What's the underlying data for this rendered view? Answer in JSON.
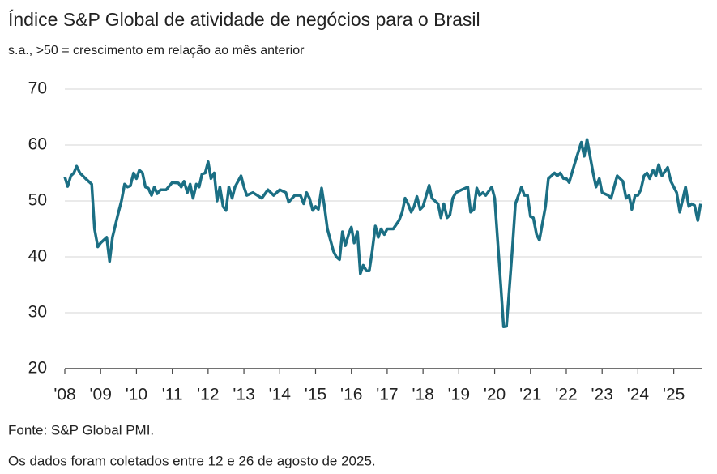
{
  "chart_data": {
    "type": "line",
    "title": "Índice S&P Global de atividade de negócios para o Brasil",
    "subtitle": "s.a., >50 = crescimento em relação ao mês anterior",
    "source": "Fonte: S&P Global PMI.",
    "note": "Os dados foram coletados entre 12 e 26 de agosto de 2025.",
    "xlim": [
      2008,
      2025.8
    ],
    "xticks": [
      {
        "value": 2008,
        "label": "'08"
      },
      {
        "value": 2009,
        "label": "'09"
      },
      {
        "value": 2010,
        "label": "'10"
      },
      {
        "value": 2011,
        "label": "'11"
      },
      {
        "value": 2012,
        "label": "'12"
      },
      {
        "value": 2013,
        "label": "'13"
      },
      {
        "value": 2014,
        "label": "'14"
      },
      {
        "value": 2015,
        "label": "'15"
      },
      {
        "value": 2016,
        "label": "'16"
      },
      {
        "value": 2017,
        "label": "'17"
      },
      {
        "value": 2018,
        "label": "'18"
      },
      {
        "value": 2019,
        "label": "'19"
      },
      {
        "value": 2020,
        "label": "'20"
      },
      {
        "value": 2021,
        "label": "'21"
      },
      {
        "value": 2022,
        "label": "'22"
      },
      {
        "value": 2023,
        "label": "'23"
      },
      {
        "value": 2024,
        "label": "'24"
      },
      {
        "value": 2025,
        "label": "'25"
      }
    ],
    "ylim": [
      20,
      70
    ],
    "yticks": [
      20,
      30,
      40,
      50,
      60,
      70
    ],
    "grid": true,
    "color": "#1b6f84",
    "x": [
      2008.0,
      2008.08,
      2008.17,
      2008.25,
      2008.33,
      2008.42,
      2008.58,
      2008.75,
      2008.83,
      2008.92,
      2009.0,
      2009.17,
      2009.25,
      2009.33,
      2009.5,
      2009.58,
      2009.67,
      2009.75,
      2009.83,
      2009.92,
      2010.0,
      2010.08,
      2010.17,
      2010.25,
      2010.33,
      2010.42,
      2010.5,
      2010.58,
      2010.67,
      2010.83,
      2010.92,
      2011.0,
      2011.17,
      2011.25,
      2011.33,
      2011.42,
      2011.5,
      2011.58,
      2011.67,
      2011.75,
      2011.83,
      2011.92,
      2012.0,
      2012.08,
      2012.17,
      2012.25,
      2012.33,
      2012.42,
      2012.5,
      2012.58,
      2012.67,
      2012.75,
      2012.92,
      2013.0,
      2013.08,
      2013.25,
      2013.5,
      2013.67,
      2013.83,
      2014.0,
      2014.17,
      2014.25,
      2014.42,
      2014.58,
      2014.67,
      2014.75,
      2014.83,
      2014.92,
      2015.0,
      2015.08,
      2015.17,
      2015.25,
      2015.33,
      2015.5,
      2015.58,
      2015.67,
      2015.75,
      2015.83,
      2015.92,
      2016.0,
      2016.08,
      2016.17,
      2016.25,
      2016.33,
      2016.42,
      2016.5,
      2016.58,
      2016.67,
      2016.75,
      2016.83,
      2016.92,
      2017.0,
      2017.17,
      2017.33,
      2017.42,
      2017.5,
      2017.58,
      2017.67,
      2017.75,
      2017.83,
      2017.92,
      2018.0,
      2018.17,
      2018.25,
      2018.42,
      2018.5,
      2018.58,
      2018.67,
      2018.75,
      2018.83,
      2018.92,
      2019.08,
      2019.25,
      2019.33,
      2019.42,
      2019.5,
      2019.58,
      2019.67,
      2019.75,
      2019.92,
      2020.0,
      2020.17,
      2020.25,
      2020.33,
      2020.42,
      2020.5,
      2020.58,
      2020.75,
      2020.83,
      2020.92,
      2021.0,
      2021.08,
      2021.17,
      2021.25,
      2021.42,
      2021.5,
      2021.67,
      2021.75,
      2021.83,
      2021.92,
      2022.0,
      2022.08,
      2022.25,
      2022.42,
      2022.5,
      2022.58,
      2022.75,
      2022.83,
      2022.92,
      2023.0,
      2023.17,
      2023.25,
      2023.42,
      2023.58,
      2023.67,
      2023.75,
      2023.83,
      2023.92,
      2024.0,
      2024.08,
      2024.17,
      2024.25,
      2024.33,
      2024.42,
      2024.5,
      2024.58,
      2024.67,
      2024.83,
      2024.92,
      2025.08,
      2025.17,
      2025.33,
      2025.42,
      2025.5,
      2025.58,
      2025.67,
      2025.75
    ],
    "values": [
      54.3,
      52.6,
      54.5,
      55.0,
      56.2,
      55.0,
      54.0,
      53.0,
      45.0,
      41.8,
      42.5,
      43.5,
      39.2,
      43.5,
      48.0,
      50.0,
      53.0,
      52.5,
      52.7,
      55.0,
      54.0,
      55.5,
      55.0,
      52.5,
      52.3,
      51.0,
      52.5,
      51.3,
      52.0,
      52.0,
      52.7,
      53.3,
      53.2,
      52.5,
      53.5,
      51.5,
      53.0,
      50.5,
      53.0,
      52.5,
      54.8,
      55.0,
      57.0,
      54.0,
      55.0,
      50.0,
      52.5,
      49.0,
      48.3,
      52.5,
      50.5,
      52.5,
      54.5,
      52.5,
      51.0,
      51.5,
      50.5,
      52.0,
      51.0,
      52.0,
      51.5,
      49.8,
      51.0,
      51.0,
      49.5,
      51.5,
      50.5,
      48.3,
      49.0,
      48.5,
      52.3,
      49.0,
      45.0,
      41.0,
      40.0,
      39.5,
      44.5,
      42.0,
      44.0,
      45.3,
      42.5,
      44.5,
      37.0,
      38.5,
      37.5,
      37.5,
      41.0,
      45.5,
      43.5,
      45.0,
      44.0,
      45.0,
      45.0,
      46.5,
      48.0,
      50.5,
      49.5,
      48.0,
      49.0,
      50.8,
      48.5,
      49.0,
      52.8,
      50.5,
      49.5,
      47.0,
      49.5,
      47.0,
      47.5,
      50.5,
      51.5,
      52.0,
      52.5,
      48.0,
      48.5,
      52.3,
      51.0,
      51.5,
      51.0,
      52.5,
      50.5,
      35.0,
      27.5,
      27.6,
      35.0,
      42.0,
      49.5,
      52.5,
      51.0,
      51.0,
      47.2,
      47.0,
      44.0,
      43.0,
      49.0,
      54.0,
      55.0,
      54.5,
      55.0,
      54.0,
      54.0,
      53.3,
      57.0,
      60.5,
      58.0,
      61.0,
      55.0,
      52.5,
      54.0,
      51.5,
      51.0,
      50.5,
      54.5,
      53.5,
      50.5,
      51.0,
      48.5,
      51.0,
      51.0,
      52.0,
      54.5,
      55.0,
      54.0,
      55.5,
      54.5,
      56.5,
      54.5,
      56.0,
      53.5,
      51.5,
      48.0,
      52.5,
      49.0,
      49.5,
      49.2,
      46.5,
      49.5
    ]
  }
}
